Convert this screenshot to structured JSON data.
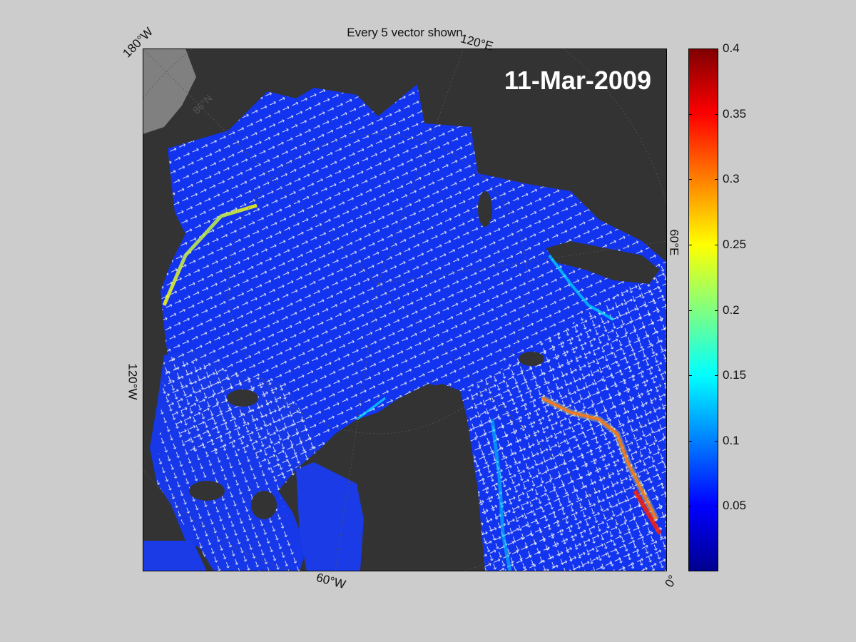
{
  "figure": {
    "title": "Every 5 vector shown",
    "date": "11-Mar-2009",
    "labels": {
      "lon_180w": "180°W",
      "lon_120e": "120°E",
      "lat_86n": "86°N",
      "lon_60e": "60°E",
      "lon_120w": "120°W",
      "lon_60w": "60°W",
      "lon_0": "0°"
    }
  },
  "colorbar": {
    "min": 0,
    "max": 0.4,
    "ticks": [
      "0.05",
      "0.1",
      "0.15",
      "0.2",
      "0.25",
      "0.3",
      "0.35",
      "0.4"
    ],
    "colormap": [
      "#00008f",
      "#0000ff",
      "#0080ff",
      "#00ffff",
      "#80ff80",
      "#ffff00",
      "#ff8000",
      "#ff0000",
      "#800000"
    ]
  },
  "colors": {
    "background": "#cccccc",
    "land": "#333333",
    "ocean_base": "#0a2fe0",
    "vectors": "#ffffff"
  }
}
